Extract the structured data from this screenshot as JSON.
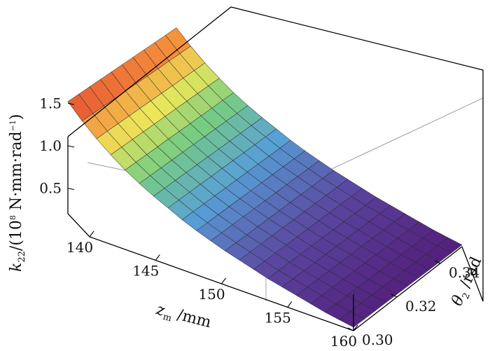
{
  "chart_data": {
    "type": "surface3d",
    "x_axis": {
      "name": "z",
      "sub": "m",
      "unit": " /mm",
      "ticks": [
        "140",
        "145",
        "150",
        "155",
        "160"
      ],
      "range": [
        140,
        160
      ]
    },
    "y_axis": {
      "name": "θ",
      "sub": "2",
      "unit": " /rad",
      "ticks": [
        "0.30",
        "0.32",
        "0.34"
      ],
      "range": [
        0.3,
        0.35
      ]
    },
    "z_axis": {
      "name": "k",
      "sub": "22",
      "unit_open": "/(10",
      "unit_sup": "8",
      "unit_mid": " N·mm·rad",
      "unit_sup2": "−1",
      "unit_close": ")",
      "ticks": [
        "0.5",
        "1.0",
        "1.5"
      ],
      "range": [
        0.2,
        1.75
      ]
    },
    "surface": {
      "description_values": "k22 decreases with z_m (≈1.5 at z_m=140 to ≈0.2 at z_m=160), nearly flat in θ2",
      "grid_x": 21,
      "grid_y": 11,
      "z_at_x": [
        1.52,
        1.36,
        1.22,
        1.1,
        0.99,
        0.9,
        0.82,
        0.75,
        0.68,
        0.62,
        0.57,
        0.52,
        0.48,
        0.44,
        0.4,
        0.37,
        0.34,
        0.31,
        0.28,
        0.26,
        0.24
      ],
      "theta_slope": 0.08,
      "colormap": "rainbow"
    }
  }
}
